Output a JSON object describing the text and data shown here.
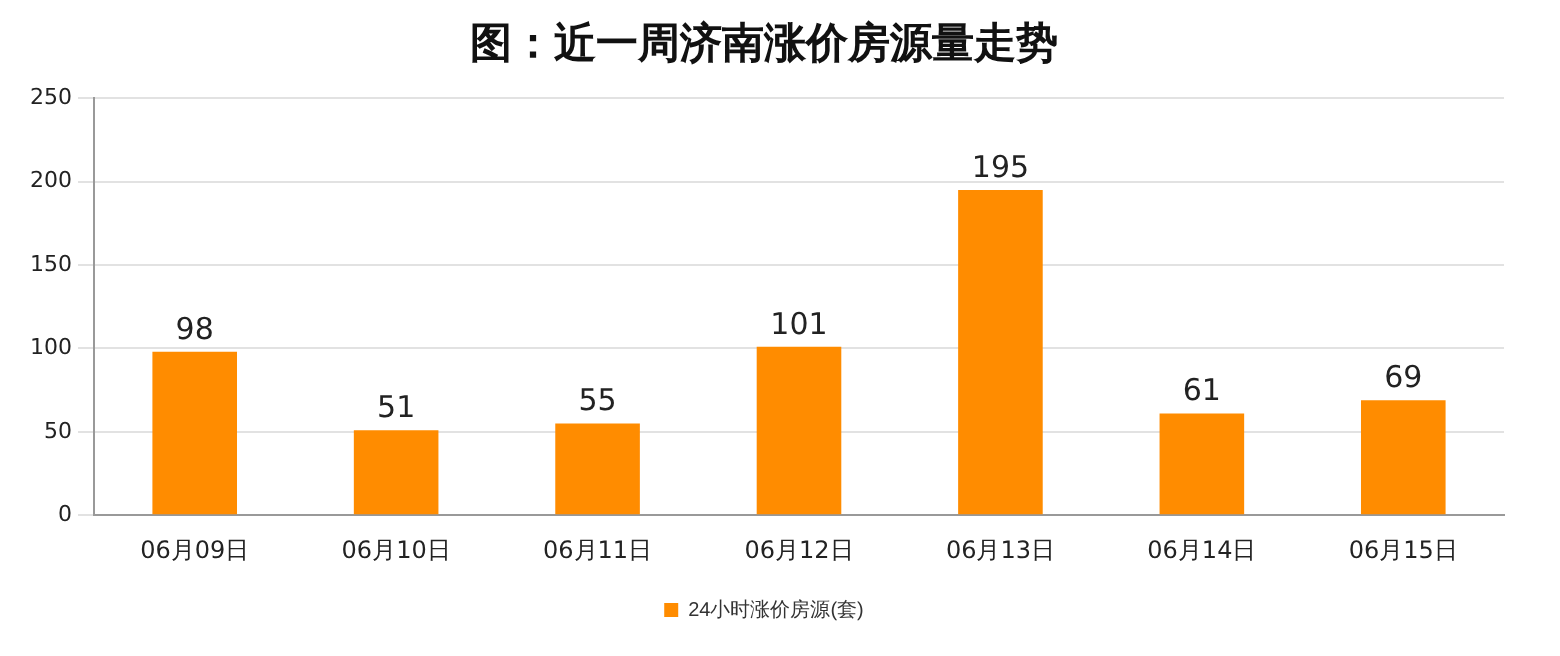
{
  "chart_data": {
    "type": "bar",
    "title": "图：近一周济南涨价房源量走势",
    "categories": [
      "06月09日",
      "06月10日",
      "06月11日",
      "06月12日",
      "06月13日",
      "06月14日",
      "06月15日"
    ],
    "series": [
      {
        "name": "24小时涨价房源(套)",
        "color": "#ff8c00",
        "values": [
          98,
          51,
          55,
          101,
          195,
          61,
          69
        ]
      }
    ],
    "ylim": [
      0,
      250
    ],
    "yticks": [
      0,
      50,
      100,
      150,
      200,
      250
    ],
    "grid": "y",
    "legend": "bottom",
    "data_labels": true
  }
}
